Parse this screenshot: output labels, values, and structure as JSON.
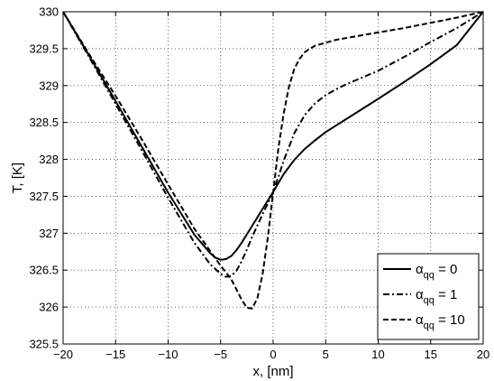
{
  "chart_data": {
    "type": "line",
    "title": "",
    "xlabel": "x, [nm]",
    "ylabel": "T, [K]",
    "xlim": [
      -20,
      20
    ],
    "ylim": [
      325.5,
      330
    ],
    "xticks": [
      -20,
      -15,
      -10,
      -5,
      0,
      5,
      10,
      15,
      20
    ],
    "yticks": [
      325.5,
      326,
      326.5,
      327,
      327.5,
      328,
      328.5,
      329,
      329.5,
      330
    ],
    "xtick_labels": [
      "−20",
      "−15",
      "−10",
      "−5",
      "0",
      "5",
      "10",
      "15",
      "20"
    ],
    "ytick_labels": [
      "325.5",
      "326",
      "326.5",
      "327",
      "327.5",
      "328",
      "328.5",
      "329",
      "329.5",
      "330"
    ],
    "grid": true,
    "legend_position": "bottom-right",
    "series": [
      {
        "name": "αqq = 0",
        "legend_symbol": "α",
        "legend_subscript": "qq",
        "legend_value": " = 0",
        "style": "solid",
        "color": "#000000",
        "x": [
          -20,
          -17.5,
          -15,
          -12.5,
          -10,
          -7.5,
          -6,
          -5.5,
          -5,
          -4.5,
          -4,
          -3.5,
          -3,
          -2,
          -1,
          0,
          1,
          2,
          3,
          4,
          5,
          6,
          8,
          10,
          12.5,
          15,
          17.5,
          20
        ],
        "y": [
          330,
          329.4,
          328.79,
          328.17,
          327.55,
          326.98,
          326.73,
          326.67,
          326.64,
          326.65,
          326.69,
          326.77,
          326.87,
          327.1,
          327.33,
          327.56,
          327.8,
          327.99,
          328.14,
          328.26,
          328.37,
          328.46,
          328.64,
          328.82,
          329.05,
          329.29,
          329.55,
          330
        ]
      },
      {
        "name": "αqq = 1",
        "legend_symbol": "α",
        "legend_subscript": "qq",
        "legend_value": " = 1",
        "style": "dashdot",
        "color": "#000000",
        "x": [
          -20,
          -17.5,
          -15,
          -12.5,
          -10,
          -7.5,
          -6,
          -5,
          -4.5,
          -4,
          -3.5,
          -3,
          -2.5,
          -2,
          -1,
          0,
          1,
          2,
          3,
          4,
          5,
          6,
          7,
          8,
          10,
          12.5,
          15,
          17.5,
          20
        ],
        "y": [
          330,
          329.38,
          328.75,
          328.12,
          327.48,
          326.87,
          326.58,
          326.45,
          326.41,
          326.42,
          326.49,
          326.62,
          326.78,
          326.95,
          327.26,
          327.55,
          327.98,
          328.35,
          328.6,
          328.76,
          328.87,
          328.95,
          329.02,
          329.08,
          329.2,
          329.39,
          329.59,
          329.78,
          330
        ]
      },
      {
        "name": "αqq = 10",
        "legend_symbol": "α",
        "legend_subscript": "qq",
        "legend_value": " = 10",
        "style": "dashed",
        "color": "#000000",
        "x": [
          -20,
          -17.5,
          -15,
          -12.5,
          -10,
          -7.5,
          -5.5,
          -5,
          -4.5,
          -4,
          -3.5,
          -3,
          -2.5,
          -2,
          -1.5,
          -1,
          -0.5,
          0,
          0.5,
          1,
          1.5,
          2,
          2.5,
          3,
          3.5,
          4,
          5,
          6,
          8,
          10,
          12.5,
          15,
          17.5,
          20
        ],
        "y": [
          330,
          329.42,
          328.86,
          328.27,
          327.66,
          327.06,
          326.66,
          326.56,
          326.47,
          326.38,
          326.24,
          326.1,
          325.99,
          325.98,
          326.12,
          326.45,
          326.95,
          327.55,
          328.15,
          328.62,
          328.98,
          329.22,
          329.36,
          329.45,
          329.5,
          329.54,
          329.58,
          329.62,
          329.67,
          329.72,
          329.78,
          329.85,
          329.92,
          330
        ]
      }
    ]
  }
}
